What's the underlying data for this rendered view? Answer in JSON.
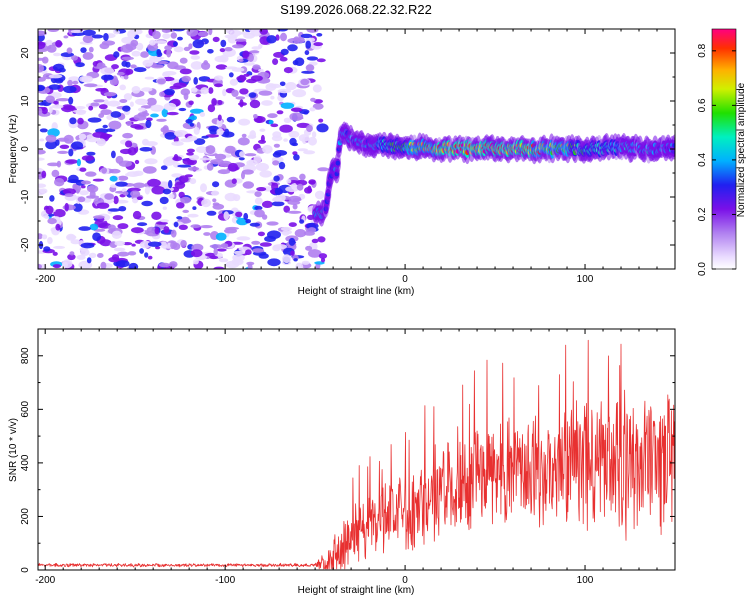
{
  "title": "S199.2026.068.22.32.R22",
  "chart_data": [
    {
      "type": "heatmap",
      "name": "spectrogram",
      "xlabel": "Height of straight line (km)",
      "ylabel": "Frequency (Hz)",
      "xlim": [
        -204,
        150
      ],
      "ylim": [
        -25,
        25
      ],
      "xticks": [
        -200,
        -100,
        0,
        100
      ],
      "xtick_labels": [
        "-200",
        "-100",
        "0",
        "100"
      ],
      "yticks": [
        -20,
        -10,
        0,
        10,
        20
      ],
      "ytick_labels": [
        "-20",
        "-10",
        "0",
        "10",
        "20"
      ],
      "colorbar": {
        "label": "Normalized spectral amplitude",
        "range": [
          0.0,
          0.88
        ],
        "ticks": [
          0.0,
          0.2,
          0.4,
          0.6,
          0.8
        ],
        "tick_labels": [
          "0.0",
          "0.2",
          "0.4",
          "0.6",
          "0.8"
        ]
      },
      "noise_region_km": [
        -204,
        -50
      ],
      "signal_ridge": {
        "x_km": [
          -50,
          -46,
          -44,
          -42,
          -40,
          -38,
          -36,
          -34,
          -32,
          -30,
          -25,
          -20,
          -10,
          0,
          20,
          40,
          60,
          80,
          100,
          120,
          140,
          150
        ],
        "freq_hz": [
          -13,
          -14,
          -12,
          -7,
          -3,
          -5,
          2,
          4,
          3,
          2,
          1.5,
          1.0,
          0.8,
          0.5,
          0.2,
          0.1,
          0.0,
          0.0,
          0.0,
          0.3,
          0.0,
          0.2
        ],
        "amplitude": [
          0.35,
          0.4,
          0.3,
          0.25,
          0.25,
          0.3,
          0.3,
          0.35,
          0.3,
          0.35,
          0.35,
          0.35,
          0.45,
          0.55,
          0.75,
          0.8,
          0.8,
          0.65,
          0.5,
          0.4,
          0.35,
          0.3
        ]
      }
    },
    {
      "type": "line",
      "name": "snr",
      "xlabel": "Height of straight line (km)",
      "ylabel": "SNR (10 * v/v)",
      "xlim": [
        -204,
        150
      ],
      "ylim": [
        0,
        900
      ],
      "xticks": [
        -200,
        -100,
        0,
        100
      ],
      "xtick_labels": [
        "-200",
        "-100",
        "0",
        "100"
      ],
      "yticks": [
        0,
        200,
        400,
        600,
        800
      ],
      "ytick_labels": [
        "0",
        "200",
        "400",
        "600",
        "800"
      ],
      "color": "#e83030",
      "envelope": {
        "x_km": [
          -204,
          -50,
          -40,
          -30,
          -20,
          0,
          20,
          40,
          60,
          80,
          100,
          120,
          140,
          150
        ],
        "baseline": [
          18,
          18,
          40,
          120,
          170,
          220,
          290,
          340,
          370,
          380,
          390,
          390,
          400,
          420
        ],
        "amplitude": [
          6,
          6,
          80,
          110,
          120,
          140,
          180,
          200,
          200,
          210,
          230,
          260,
          250,
          240
        ]
      }
    }
  ]
}
